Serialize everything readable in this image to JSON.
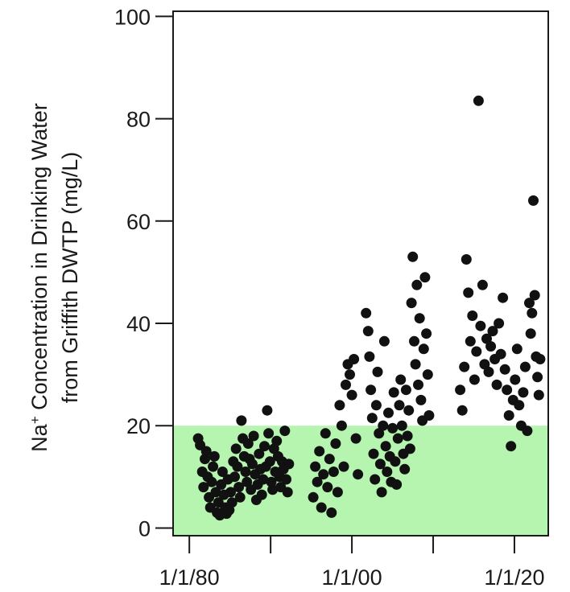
{
  "chart_data": {
    "type": "scatter",
    "title": "",
    "ylabel": {
      "line1_prefix": "Na",
      "line1_superscript": "+",
      "line1_suffix": " Concentration in Drinking Water",
      "line2": "from Griffith DWTP (mg/L)"
    },
    "xlabel": "",
    "x_axis": {
      "type": "date",
      "range": [
        "1978-01-01",
        "2024-03-01"
      ],
      "tick_labels": [
        {
          "date": "1980-01-01",
          "label": "1/1/80"
        },
        {
          "date": "2000-01-01",
          "label": "1/1/00"
        },
        {
          "date": "2020-01-01",
          "label": "1/1/20"
        }
      ],
      "minor_ticks": [
        "1990-01-01",
        "2010-01-01"
      ]
    },
    "y_axis": {
      "range": [
        -1.5,
        101
      ],
      "ticks": [
        0,
        20,
        40,
        60,
        80,
        100
      ]
    },
    "reference_band": {
      "y0": -1.5,
      "y1": 20,
      "color": "#b6f5b0"
    },
    "marker_color": "#111111",
    "grid": false,
    "legend": "none",
    "points": [
      [
        "1981-02-01",
        17.5
      ],
      [
        "1981-05-01",
        16.2
      ],
      [
        "1981-08-01",
        11.0
      ],
      [
        "1981-10-01",
        8.0
      ],
      [
        "1981-12-01",
        13.5
      ],
      [
        "1982-02-01",
        15.0
      ],
      [
        "1982-04-01",
        10.0
      ],
      [
        "1982-06-01",
        6.0
      ],
      [
        "1982-08-01",
        4.0
      ],
      [
        "1982-10-01",
        9.0
      ],
      [
        "1982-12-01",
        12.0
      ],
      [
        "1983-02-01",
        14.0
      ],
      [
        "1983-04-01",
        7.0
      ],
      [
        "1983-06-01",
        3.0
      ],
      [
        "1983-08-01",
        5.0
      ],
      [
        "1983-10-01",
        2.5
      ],
      [
        "1983-12-01",
        8.5
      ],
      [
        "1984-02-01",
        11.0
      ],
      [
        "1984-04-01",
        6.5
      ],
      [
        "1984-06-01",
        4.0
      ],
      [
        "1984-08-01",
        2.8
      ],
      [
        "1984-10-01",
        9.5
      ],
      [
        "1984-12-01",
        3.5
      ],
      [
        "1985-02-01",
        7.0
      ],
      [
        "1985-04-01",
        5.0
      ],
      [
        "1985-06-01",
        13.0
      ],
      [
        "1985-08-01",
        10.0
      ],
      [
        "1985-10-01",
        15.5
      ],
      [
        "1985-12-01",
        12.0
      ],
      [
        "1986-02-01",
        8.0
      ],
      [
        "1986-04-01",
        6.0
      ],
      [
        "1986-06-01",
        21.0
      ],
      [
        "1986-08-01",
        17.5
      ],
      [
        "1986-10-01",
        14.0
      ],
      [
        "1986-12-01",
        11.0
      ],
      [
        "1987-02-01",
        9.0
      ],
      [
        "1987-04-01",
        16.5
      ],
      [
        "1987-06-01",
        13.5
      ],
      [
        "1987-08-01",
        7.5
      ],
      [
        "1987-10-01",
        12.5
      ],
      [
        "1987-12-01",
        18.0
      ],
      [
        "1988-02-01",
        10.5
      ],
      [
        "1988-04-01",
        5.5
      ],
      [
        "1988-06-01",
        8.5
      ],
      [
        "1988-08-01",
        14.5
      ],
      [
        "1988-10-01",
        11.5
      ],
      [
        "1988-12-01",
        6.5
      ],
      [
        "1989-02-01",
        9.5
      ],
      [
        "1989-04-01",
        16.0
      ],
      [
        "1989-06-01",
        12.0
      ],
      [
        "1989-08-01",
        23.0
      ],
      [
        "1989-10-01",
        18.5
      ],
      [
        "1989-12-01",
        13.0
      ],
      [
        "1990-02-01",
        9.0
      ],
      [
        "1990-04-01",
        7.5
      ],
      [
        "1990-06-01",
        15.5
      ],
      [
        "1990-08-01",
        11.0
      ],
      [
        "1990-10-01",
        17.0
      ],
      [
        "1990-12-01",
        14.0
      ],
      [
        "1991-02-01",
        10.0
      ],
      [
        "1991-04-01",
        8.0
      ],
      [
        "1991-06-01",
        13.0
      ],
      [
        "1991-08-01",
        11.5
      ],
      [
        "1991-10-01",
        19.0
      ],
      [
        "1991-12-01",
        9.5
      ],
      [
        "1992-02-01",
        7.0
      ],
      [
        "1992-04-01",
        12.5
      ],
      [
        "1995-04-01",
        6.0
      ],
      [
        "1995-07-01",
        12.0
      ],
      [
        "1995-10-01",
        9.0
      ],
      [
        "1996-01-01",
        15.0
      ],
      [
        "1996-04-01",
        4.0
      ],
      [
        "1996-07-01",
        10.5
      ],
      [
        "1996-10-01",
        18.5
      ],
      [
        "1997-01-01",
        8.0
      ],
      [
        "1997-04-01",
        13.5
      ],
      [
        "1997-07-01",
        3.0
      ],
      [
        "1997-10-01",
        11.0
      ],
      [
        "1998-01-01",
        16.5
      ],
      [
        "1998-04-01",
        7.0
      ],
      [
        "1998-07-01",
        24.0
      ],
      [
        "1998-10-01",
        20.0
      ],
      [
        "1999-01-01",
        12.0
      ],
      [
        "1999-04-01",
        28.0
      ],
      [
        "1999-07-01",
        32.0
      ],
      [
        "1999-10-01",
        30.0
      ],
      [
        "2000-01-01",
        26.0
      ],
      [
        "2000-04-01",
        33.0
      ],
      [
        "2000-07-01",
        17.5
      ],
      [
        "2000-10-01",
        10.5
      ],
      [
        "2001-10-01",
        42.0
      ],
      [
        "2002-01-01",
        38.5
      ],
      [
        "2002-03-01",
        33.5
      ],
      [
        "2002-05-01",
        27.0
      ],
      [
        "2002-07-01",
        21.5
      ],
      [
        "2002-09-01",
        14.5
      ],
      [
        "2002-11-01",
        9.5
      ],
      [
        "2003-01-01",
        24.0
      ],
      [
        "2003-03-01",
        30.5
      ],
      [
        "2003-05-01",
        18.5
      ],
      [
        "2003-07-01",
        12.5
      ],
      [
        "2003-09-01",
        7.0
      ],
      [
        "2003-11-01",
        20.0
      ],
      [
        "2004-01-01",
        36.5
      ],
      [
        "2004-03-01",
        16.0
      ],
      [
        "2004-05-01",
        11.0
      ],
      [
        "2004-07-01",
        22.5
      ],
      [
        "2004-09-01",
        14.0
      ],
      [
        "2004-11-01",
        9.0
      ],
      [
        "2005-01-01",
        19.5
      ],
      [
        "2005-03-01",
        26.5
      ],
      [
        "2005-05-01",
        13.0
      ],
      [
        "2005-07-01",
        8.5
      ],
      [
        "2005-09-01",
        17.5
      ],
      [
        "2005-11-01",
        24.0
      ],
      [
        "2006-01-01",
        29.0
      ],
      [
        "2006-03-01",
        20.0
      ],
      [
        "2006-05-01",
        14.5
      ],
      [
        "2006-07-01",
        11.5
      ],
      [
        "2006-09-01",
        27.0
      ],
      [
        "2006-11-01",
        18.0
      ],
      [
        "2007-01-01",
        23.0
      ],
      [
        "2007-03-01",
        15.5
      ],
      [
        "2007-05-01",
        44.0
      ],
      [
        "2007-07-01",
        53.0
      ],
      [
        "2007-09-01",
        36.5
      ],
      [
        "2007-11-01",
        32.0
      ],
      [
        "2008-01-01",
        47.5
      ],
      [
        "2008-03-01",
        28.0
      ],
      [
        "2008-05-01",
        41.0
      ],
      [
        "2008-07-01",
        25.0
      ],
      [
        "2008-09-01",
        21.0
      ],
      [
        "2008-11-01",
        35.0
      ],
      [
        "2009-01-01",
        49.0
      ],
      [
        "2009-03-01",
        38.0
      ],
      [
        "2009-05-01",
        30.0
      ],
      [
        "2009-07-01",
        22.0
      ],
      [
        "2013-05-01",
        27.0
      ],
      [
        "2013-08-01",
        23.0
      ],
      [
        "2013-11-01",
        31.5
      ],
      [
        "2014-02-01",
        52.5
      ],
      [
        "2014-05-01",
        46.0
      ],
      [
        "2014-08-01",
        36.5
      ],
      [
        "2014-11-01",
        41.5
      ],
      [
        "2015-02-01",
        29.0
      ],
      [
        "2015-05-01",
        34.5
      ],
      [
        "2015-08-01",
        83.5
      ],
      [
        "2015-11-01",
        39.5
      ],
      [
        "2016-02-01",
        47.5
      ],
      [
        "2016-05-01",
        32.0
      ],
      [
        "2016-08-01",
        37.0
      ],
      [
        "2016-11-01",
        30.5
      ],
      [
        "2017-02-01",
        35.5
      ],
      [
        "2017-05-01",
        38.5
      ],
      [
        "2017-08-01",
        33.0
      ],
      [
        "2017-11-01",
        28.0
      ],
      [
        "2018-02-01",
        40.0
      ],
      [
        "2018-05-01",
        34.0
      ],
      [
        "2018-08-01",
        45.0
      ],
      [
        "2018-11-01",
        31.0
      ],
      [
        "2019-02-01",
        27.0
      ],
      [
        "2019-05-01",
        22.0
      ],
      [
        "2019-08-01",
        16.0
      ],
      [
        "2019-11-01",
        25.0
      ],
      [
        "2020-02-01",
        29.0
      ],
      [
        "2020-05-01",
        35.0
      ],
      [
        "2020-08-01",
        24.0
      ],
      [
        "2020-11-01",
        20.0
      ],
      [
        "2021-02-01",
        26.5
      ],
      [
        "2021-05-01",
        31.5
      ],
      [
        "2021-08-01",
        19.0
      ],
      [
        "2021-11-01",
        44.0
      ],
      [
        "2022-01-01",
        38.0
      ],
      [
        "2022-03-01",
        42.0
      ],
      [
        "2022-05-01",
        64.0
      ],
      [
        "2022-07-01",
        45.5
      ],
      [
        "2022-09-01",
        33.5
      ],
      [
        "2022-11-01",
        29.5
      ],
      [
        "2023-01-01",
        26.0
      ],
      [
        "2023-03-01",
        33.0
      ]
    ]
  }
}
